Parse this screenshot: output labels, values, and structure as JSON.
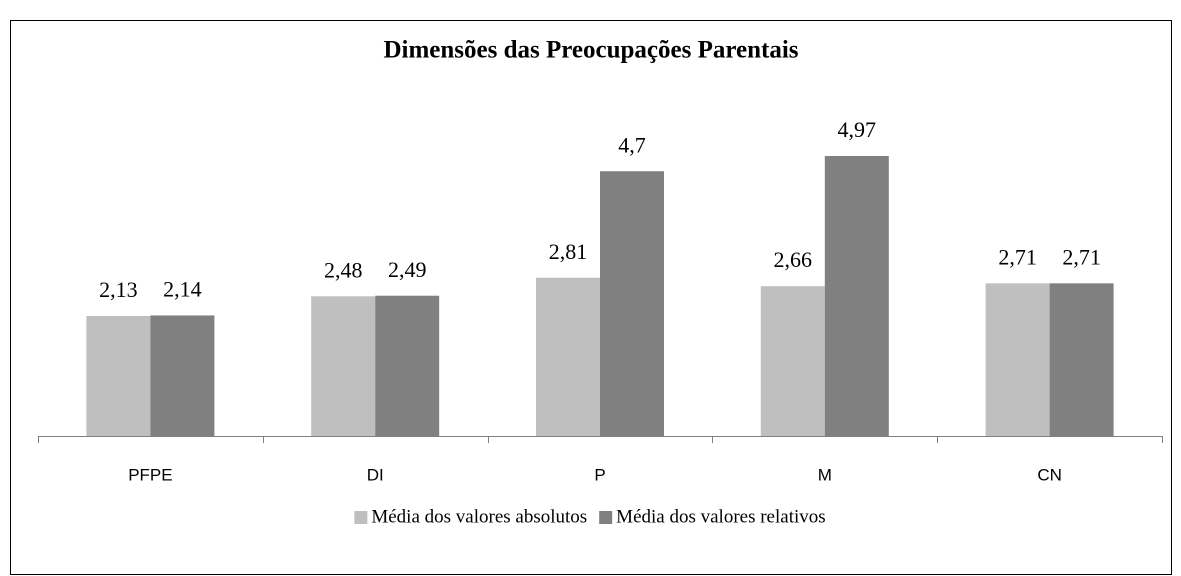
{
  "chart_data": {
    "type": "bar",
    "title": "Dimensões das Preocupações Parentais",
    "categories": [
      "PFPE",
      "DI",
      "P",
      "M",
      "CN"
    ],
    "series": [
      {
        "name": "Média dos valores absolutos",
        "color": "#bfbfbf",
        "values": [
          2.13,
          2.48,
          2.81,
          2.66,
          2.71
        ],
        "value_labels": [
          "2,13",
          "2,48",
          "2,81",
          "2,66",
          "2,71"
        ]
      },
      {
        "name": "Média dos valores relativos",
        "color": "#808080",
        "values": [
          2.14,
          2.49,
          4.7,
          4.97,
          2.71
        ],
        "value_labels": [
          "2,14",
          "2,49",
          "4,7",
          "4,97",
          "2,71"
        ]
      }
    ],
    "ylim": [
      0,
      6
    ],
    "legend": "bottom"
  }
}
